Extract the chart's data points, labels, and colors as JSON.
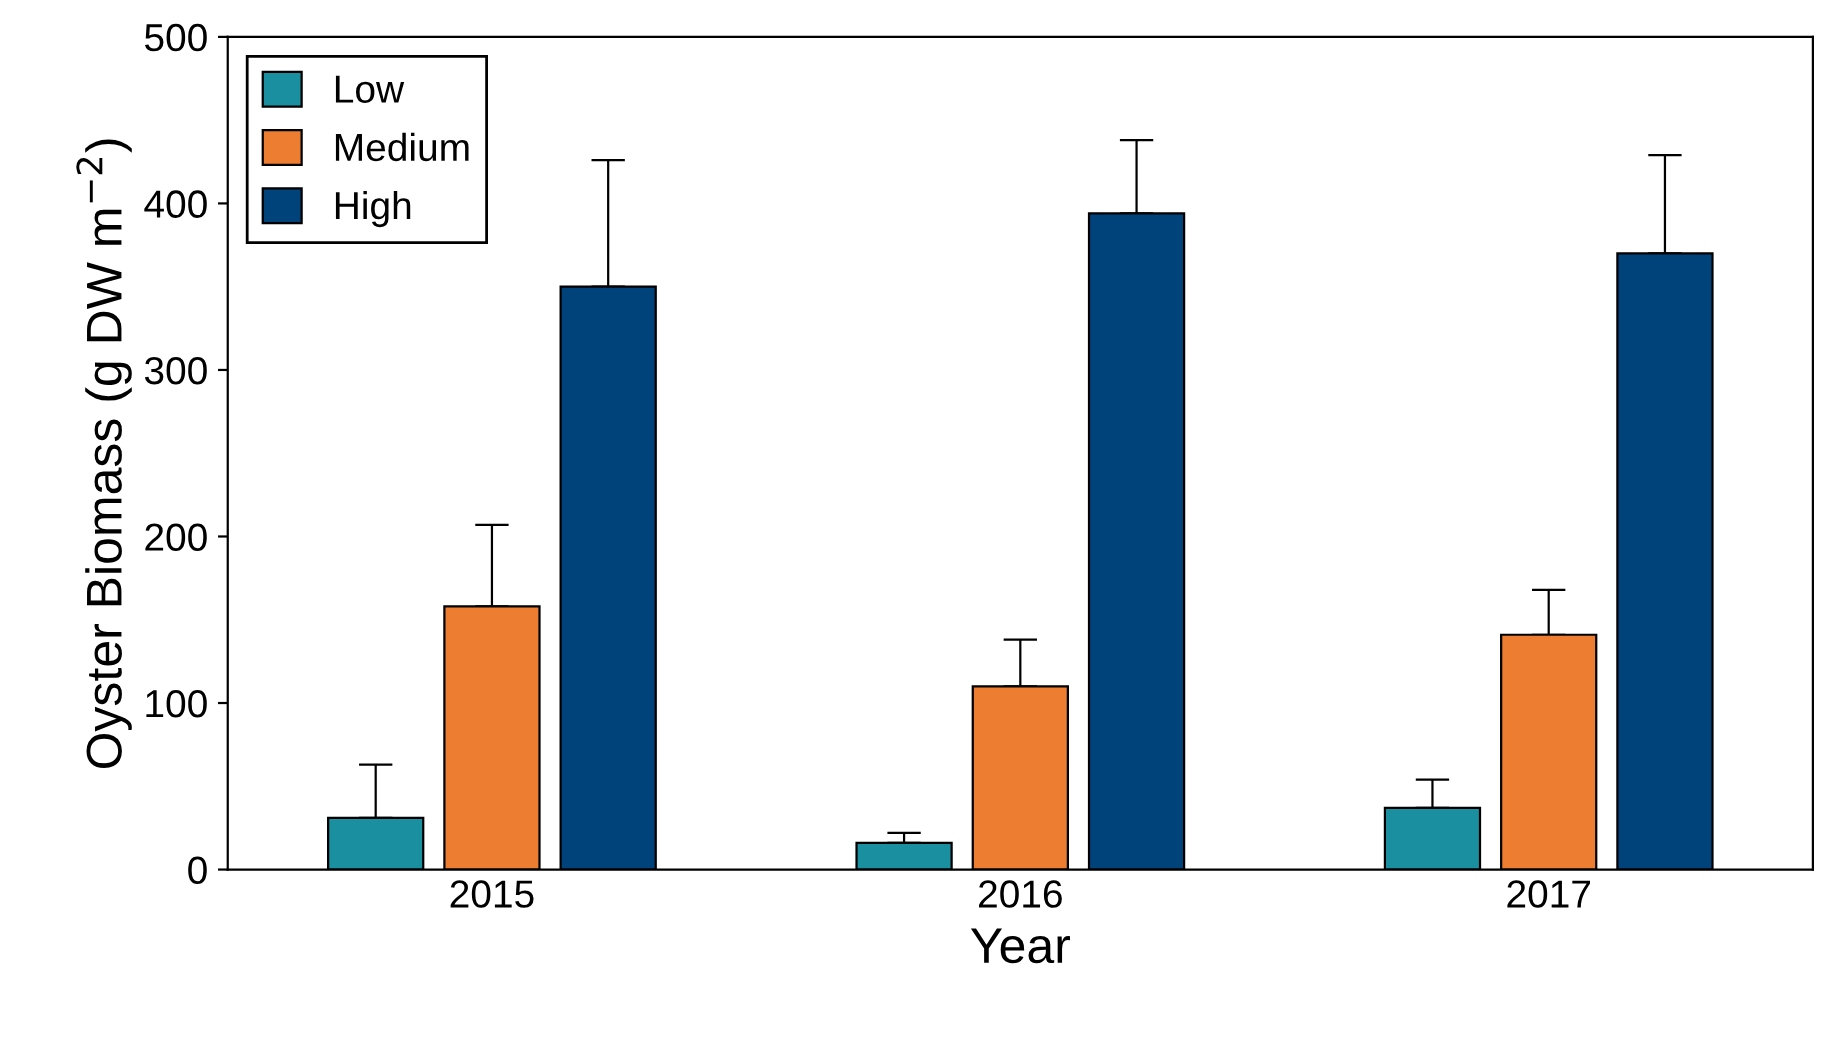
{
  "chart_data": {
    "type": "bar",
    "xlabel": "Year",
    "ylabel": "Oyster Biomass (g DW m$^{−2}$)",
    "categories": [
      "2015",
      "2016",
      "2017"
    ],
    "series": [
      {
        "name": "Low",
        "color": "#1a8fa0",
        "values": [
          31,
          16,
          37
        ],
        "errors": [
          [
            31,
            63
          ],
          [
            16,
            22
          ],
          [
            37,
            54
          ]
        ]
      },
      {
        "name": "Medium",
        "color": "#ed7d31",
        "values": [
          158,
          110,
          141
        ],
        "errors": [
          [
            158,
            207
          ],
          [
            110,
            138
          ],
          [
            141,
            168
          ]
        ]
      },
      {
        "name": "High",
        "color": "#00427a",
        "values": [
          350,
          394,
          370
        ],
        "errors": [
          [
            350,
            426
          ],
          [
            394,
            438
          ],
          [
            370,
            429
          ]
        ]
      }
    ],
    "ylim": [
      0,
      500
    ],
    "yticks": [
      0,
      100,
      200,
      300,
      400,
      500
    ],
    "grid": false,
    "legend": "top left"
  }
}
